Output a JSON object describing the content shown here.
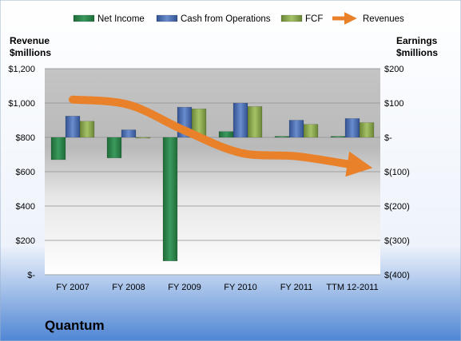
{
  "chart_data": {
    "type": "bar",
    "title": "Quantum",
    "categories": [
      "FY 2007",
      "FY 2008",
      "FY 2009",
      "FY 2010",
      "FY 2011",
      "TTM 12-2011"
    ],
    "left_axis": {
      "label_line1": "Revenue",
      "label_line2": "$millions",
      "range": [
        0,
        1200
      ],
      "ticks": [
        0,
        200,
        400,
        600,
        800,
        1000,
        1200
      ],
      "tick_labels": [
        "$-",
        "$200",
        "$400",
        "$600",
        "$800",
        "$1,000",
        "$1,200"
      ]
    },
    "right_axis": {
      "label_line1": "Earnings",
      "label_line2": "$millions",
      "range": [
        -400,
        200
      ],
      "ticks": [
        -400,
        -300,
        -200,
        -100,
        0,
        100,
        200
      ],
      "tick_labels": [
        "$(400)",
        "$(300)",
        "$(200)",
        "$(100)",
        "$-",
        "$100",
        "$200"
      ]
    },
    "series": [
      {
        "name": "Net Income",
        "axis": "right",
        "color": "#2e8b4f",
        "values": [
          -65,
          -60,
          -360,
          17,
          3,
          3
        ]
      },
      {
        "name": "Cash from Operations",
        "axis": "right",
        "color": "#4a6fb5",
        "values": [
          62,
          22,
          88,
          100,
          50,
          55
        ]
      },
      {
        "name": "FCF",
        "axis": "right",
        "color": "#8aa84a",
        "values": [
          47,
          0,
          83,
          90,
          38,
          43
        ]
      }
    ],
    "trend_line": {
      "name": "Revenues",
      "color": "#e9802a",
      "values": [
        1020,
        990,
        840,
        710,
        690,
        640
      ]
    },
    "legend_position": "top",
    "grid": true
  }
}
